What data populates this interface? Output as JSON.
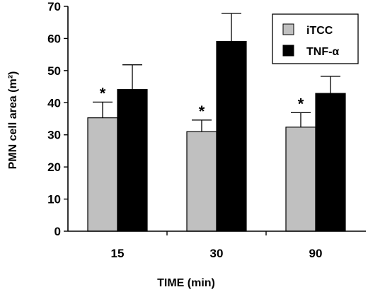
{
  "chart_data": {
    "type": "bar",
    "categories": [
      "15",
      "30",
      "90"
    ],
    "xlabel": "TIME (min)",
    "ylabel": "PMN cell area (m²)",
    "ylim": [
      0,
      70
    ],
    "yticks": [
      "0",
      "10",
      "20",
      "30",
      "40",
      "50",
      "60",
      "70"
    ],
    "grid": false,
    "legend_position": "top-right",
    "series": [
      {
        "name": "iTCC",
        "color": "#c0c0c0",
        "values": [
          35.3,
          31.0,
          32.4
        ],
        "errors": [
          4.9,
          3.6,
          4.5
        ],
        "annotations": [
          "*",
          "*",
          "*"
        ]
      },
      {
        "name": "TNF-α",
        "color": "#000000",
        "values": [
          44.1,
          59.1,
          42.9
        ],
        "errors": [
          7.7,
          8.7,
          5.3
        ],
        "annotations": [
          "",
          "",
          ""
        ]
      }
    ]
  }
}
